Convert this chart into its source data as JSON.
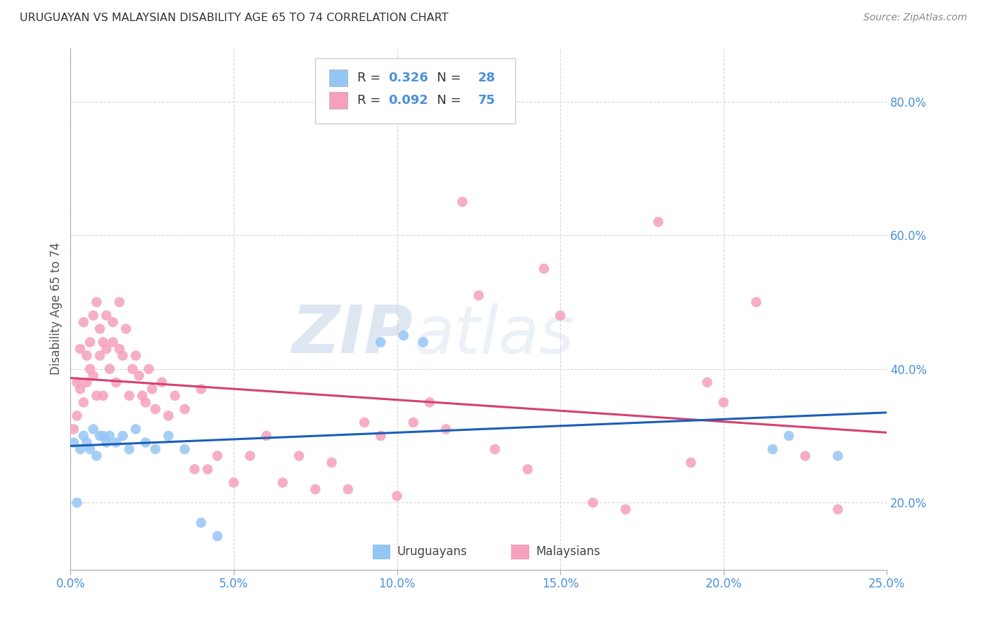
{
  "title": "URUGUAYAN VS MALAYSIAN DISABILITY AGE 65 TO 74 CORRELATION CHART",
  "source": "Source: ZipAtlas.com",
  "ylabel": "Disability Age 65 to 74",
  "xlabel_vals": [
    0.0,
    5.0,
    10.0,
    15.0,
    20.0,
    25.0
  ],
  "ylabel_vals": [
    20.0,
    40.0,
    60.0,
    80.0
  ],
  "xlim": [
    0.0,
    25.0
  ],
  "ylim": [
    10.0,
    88.0
  ],
  "uruguayan_color": "#94c6f5",
  "malaysian_color": "#f5a0bc",
  "uruguayan_R": 0.326,
  "uruguayan_N": 28,
  "malaysian_R": 0.092,
  "malaysian_N": 75,
  "uruguayan_line_color": "#1a5eb8",
  "malaysian_line_color": "#d44070",
  "background_color": "#ffffff",
  "grid_color": "#cccccc",
  "uruguayan_x": [
    0.1,
    0.2,
    0.3,
    0.4,
    0.5,
    0.6,
    0.7,
    0.8,
    0.9,
    1.0,
    1.1,
    1.2,
    1.4,
    1.6,
    1.8,
    2.0,
    2.3,
    2.6,
    3.0,
    3.5,
    4.0,
    4.5,
    9.5,
    10.2,
    10.8,
    21.5,
    22.0,
    23.5
  ],
  "uruguayan_y": [
    29,
    20,
    28,
    30,
    29,
    28,
    31,
    27,
    30,
    30,
    29,
    30,
    29,
    30,
    28,
    31,
    29,
    28,
    30,
    28,
    17,
    15,
    44,
    45,
    44,
    28,
    30,
    27
  ],
  "malaysian_x": [
    0.1,
    0.2,
    0.2,
    0.3,
    0.3,
    0.4,
    0.4,
    0.5,
    0.5,
    0.6,
    0.6,
    0.7,
    0.7,
    0.8,
    0.8,
    0.9,
    0.9,
    1.0,
    1.0,
    1.1,
    1.1,
    1.2,
    1.3,
    1.3,
    1.4,
    1.5,
    1.5,
    1.6,
    1.7,
    1.8,
    1.9,
    2.0,
    2.1,
    2.2,
    2.3,
    2.4,
    2.5,
    2.6,
    2.8,
    3.0,
    3.2,
    3.5,
    3.8,
    4.0,
    4.2,
    4.5,
    5.0,
    5.5,
    6.0,
    6.5,
    7.0,
    7.5,
    8.0,
    8.5,
    9.0,
    9.5,
    10.0,
    10.5,
    11.0,
    11.5,
    12.0,
    12.5,
    13.0,
    14.0,
    14.5,
    15.0,
    16.0,
    17.0,
    18.0,
    19.0,
    19.5,
    20.0,
    21.0,
    22.5,
    23.5
  ],
  "malaysian_y": [
    31,
    33,
    38,
    37,
    43,
    35,
    47,
    38,
    42,
    40,
    44,
    39,
    48,
    36,
    50,
    42,
    46,
    44,
    36,
    43,
    48,
    40,
    44,
    47,
    38,
    43,
    50,
    42,
    46,
    36,
    40,
    42,
    39,
    36,
    35,
    40,
    37,
    34,
    38,
    33,
    36,
    34,
    25,
    37,
    25,
    27,
    23,
    27,
    30,
    23,
    27,
    22,
    26,
    22,
    32,
    30,
    21,
    32,
    35,
    31,
    65,
    51,
    28,
    25,
    55,
    48,
    20,
    19,
    62,
    26,
    38,
    35,
    50,
    27,
    19
  ],
  "legend_label_uruguayan": "Uruguayans",
  "legend_label_malaysian": "Malaysians"
}
